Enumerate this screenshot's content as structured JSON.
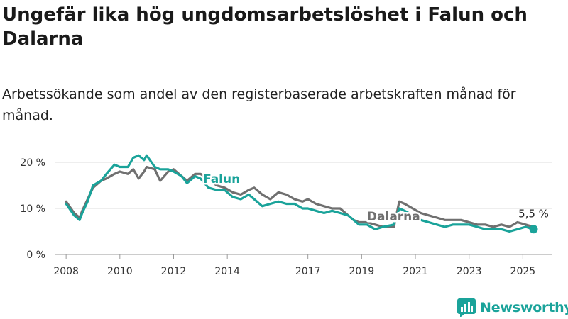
{
  "title": "Ungefär lika hög ungdomsarbetslöshet i Falun och Dalarna",
  "subtitle": "Arbetssökande som andel av den registerbaserade arbetskraften månad för månad.",
  "brand": {
    "name": "Newsworthy",
    "color": "#1aa39a",
    "icon": "bar-chart-logo-icon"
  },
  "chart_data": {
    "type": "line",
    "title": "Ungefär lika hög ungdomsarbetslöshet i Falun och Dalarna",
    "xlim": [
      2007.6,
      2026.1
    ],
    "ylim": [
      0,
      22
    ],
    "x_ticks": [
      2008,
      2010,
      2012,
      2014,
      2017,
      2019,
      2021,
      2023,
      2025
    ],
    "x_tick_labels": [
      "2008",
      "2010",
      "2012",
      "2014",
      "2017",
      "2019",
      "2021",
      "2023",
      "2025"
    ],
    "y_ticks": [
      0,
      10,
      20
    ],
    "y_tick_labels": [
      "0 %",
      "10 %",
      "20 %"
    ],
    "grid": "horizontal",
    "end_label": "5,5 %",
    "series": [
      {
        "name": "Dalarna",
        "color": "#707070",
        "x": [
          2008.0,
          2008.3,
          2008.5,
          2008.6,
          2008.8,
          2009.0,
          2009.3,
          2009.5,
          2009.8,
          2010.0,
          2010.3,
          2010.5,
          2010.7,
          2010.9,
          2011.0,
          2011.3,
          2011.5,
          2011.8,
          2012.0,
          2012.3,
          2012.5,
          2012.8,
          2013.0,
          2013.3,
          2013.6,
          2013.9,
          2014.2,
          2014.5,
          2014.8,
          2015.0,
          2015.3,
          2015.6,
          2015.9,
          2016.2,
          2016.5,
          2016.8,
          2017.0,
          2017.3,
          2017.6,
          2017.9,
          2018.2,
          2018.5,
          2018.7,
          2018.9,
          2019.2,
          2019.5,
          2019.8,
          2020.2,
          2020.4,
          2020.6,
          2020.9,
          2021.2,
          2021.5,
          2021.8,
          2022.1,
          2022.4,
          2022.7,
          2023.0,
          2023.3,
          2023.6,
          2023.9,
          2024.2,
          2024.5,
          2024.8,
          2025.1,
          2025.4
        ],
        "values": [
          11.5,
          9.0,
          8.0,
          9.5,
          12.0,
          14.5,
          16.0,
          16.5,
          17.5,
          18.0,
          17.5,
          18.5,
          16.5,
          18.0,
          19.0,
          18.5,
          16.0,
          18.0,
          18.5,
          17.0,
          16.0,
          17.5,
          17.5,
          16.5,
          15.0,
          14.5,
          13.5,
          13.0,
          14.0,
          14.5,
          13.0,
          12.0,
          13.5,
          13.0,
          12.0,
          11.5,
          12.0,
          11.0,
          10.5,
          10.0,
          10.0,
          8.5,
          7.5,
          7.0,
          7.0,
          6.5,
          6.0,
          6.0,
          11.5,
          11.0,
          10.0,
          9.0,
          8.5,
          8.0,
          7.5,
          7.5,
          7.5,
          7.0,
          6.5,
          6.5,
          6.0,
          6.5,
          6.0,
          7.0,
          6.5,
          6.0
        ]
      },
      {
        "name": "Falun",
        "color": "#1aa39a",
        "x": [
          2008.0,
          2008.3,
          2008.5,
          2008.6,
          2008.8,
          2009.0,
          2009.3,
          2009.5,
          2009.8,
          2010.0,
          2010.3,
          2010.5,
          2010.7,
          2010.9,
          2011.0,
          2011.3,
          2011.5,
          2011.8,
          2012.0,
          2012.3,
          2012.5,
          2012.8,
          2013.0,
          2013.3,
          2013.6,
          2013.9,
          2014.2,
          2014.5,
          2014.8,
          2015.0,
          2015.3,
          2015.6,
          2015.9,
          2016.2,
          2016.5,
          2016.8,
          2017.0,
          2017.3,
          2017.6,
          2017.9,
          2018.2,
          2018.5,
          2018.7,
          2018.9,
          2019.2,
          2019.5,
          2019.8,
          2020.2,
          2020.4,
          2020.6,
          2020.9,
          2021.2,
          2021.5,
          2021.8,
          2022.1,
          2022.4,
          2022.7,
          2023.0,
          2023.3,
          2023.6,
          2023.9,
          2024.2,
          2024.5,
          2024.8,
          2025.1,
          2025.4
        ],
        "values": [
          11.0,
          8.5,
          7.5,
          9.0,
          11.5,
          15.0,
          16.0,
          17.5,
          19.5,
          19.0,
          19.0,
          21.0,
          21.5,
          20.5,
          21.5,
          19.0,
          18.5,
          18.5,
          18.0,
          17.0,
          15.5,
          17.0,
          16.5,
          14.5,
          14.0,
          14.0,
          12.5,
          12.0,
          13.0,
          12.0,
          10.5,
          11.0,
          11.5,
          11.0,
          11.0,
          10.0,
          10.0,
          9.5,
          9.0,
          9.5,
          9.0,
          8.5,
          7.5,
          6.5,
          6.5,
          5.5,
          6.0,
          6.5,
          10.0,
          9.5,
          8.5,
          7.5,
          7.0,
          6.5,
          6.0,
          6.5,
          6.5,
          6.5,
          6.0,
          5.5,
          5.5,
          5.5,
          5.0,
          5.5,
          6.0,
          5.5
        ]
      }
    ],
    "labels": [
      {
        "series": "Falun",
        "text": "Falun",
        "x": 2013.1,
        "y": 16.5
      },
      {
        "series": "Dalarna",
        "text": "Dalarna",
        "x": 2019.2,
        "y": 8.3
      }
    ]
  }
}
